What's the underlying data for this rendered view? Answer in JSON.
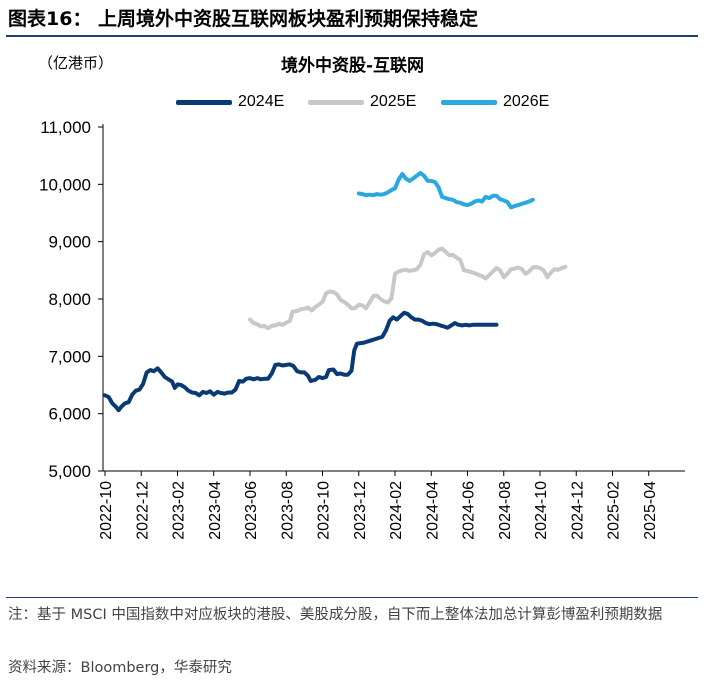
{
  "figure": {
    "title": "图表16：  上周境外中资股互联网板块盈利预期保持稳定",
    "unit_label": "（亿港币）",
    "note": "注：基于 MSCI 中国指数中对应板块的港股、美股成分股，自下而上整体法加总计算彭博盈利预期数据",
    "source": "资料来源：Bloomberg，华泰研究"
  },
  "colors": {
    "rule": "#1f3f73",
    "axis": "#000000"
  },
  "chart_data": {
    "type": "line",
    "title": "境外中资股-互联网",
    "xlabel": "",
    "ylabel": "（亿港币）",
    "legend_position": "top",
    "grid": false,
    "ylim": [
      5000,
      11000
    ],
    "yticks": [
      5000,
      6000,
      7000,
      8000,
      9000,
      10000,
      11000
    ],
    "ytick_labels": [
      "5,000",
      "6,000",
      "7,000",
      "8,000",
      "9,000",
      "10,000",
      "11,000"
    ],
    "xlim": [
      "2022-10",
      "2025-05"
    ],
    "xtick_labels": [
      "2022-10",
      "2022-12",
      "2023-02",
      "2023-04",
      "2023-06",
      "2023-08",
      "2023-10",
      "2023-12",
      "2024-02",
      "2024-04",
      "2024-06",
      "2024-08",
      "2024-10",
      "2024-12",
      "2025-02",
      "2025-04"
    ],
    "x_unit": "months since 2022-10",
    "series": [
      {
        "name": "2024E",
        "color": "#0a3a73",
        "points": [
          [
            0.0,
            6320
          ],
          [
            0.2,
            6290
          ],
          [
            0.4,
            6180
          ],
          [
            0.6,
            6120
          ],
          [
            0.75,
            6060
          ],
          [
            0.9,
            6120
          ],
          [
            1.1,
            6180
          ],
          [
            1.3,
            6200
          ],
          [
            1.5,
            6330
          ],
          [
            1.7,
            6400
          ],
          [
            1.9,
            6420
          ],
          [
            2.1,
            6520
          ],
          [
            2.3,
            6720
          ],
          [
            2.5,
            6760
          ],
          [
            2.7,
            6740
          ],
          [
            2.9,
            6790
          ],
          [
            3.1,
            6720
          ],
          [
            3.3,
            6640
          ],
          [
            3.5,
            6600
          ],
          [
            3.7,
            6560
          ],
          [
            3.85,
            6450
          ],
          [
            4.0,
            6510
          ],
          [
            4.2,
            6500
          ],
          [
            4.4,
            6460
          ],
          [
            4.6,
            6400
          ],
          [
            4.8,
            6370
          ],
          [
            5.0,
            6360
          ],
          [
            5.2,
            6320
          ],
          [
            5.4,
            6380
          ],
          [
            5.6,
            6360
          ],
          [
            5.8,
            6390
          ],
          [
            6.0,
            6330
          ],
          [
            6.2,
            6380
          ],
          [
            6.4,
            6360
          ],
          [
            6.6,
            6350
          ],
          [
            6.8,
            6370
          ],
          [
            7.0,
            6370
          ],
          [
            7.2,
            6420
          ],
          [
            7.4,
            6570
          ],
          [
            7.6,
            6560
          ],
          [
            7.8,
            6610
          ],
          [
            8.0,
            6620
          ],
          [
            8.2,
            6600
          ],
          [
            8.4,
            6620
          ],
          [
            8.6,
            6600
          ],
          [
            8.8,
            6610
          ],
          [
            9.0,
            6610
          ],
          [
            9.2,
            6700
          ],
          [
            9.4,
            6850
          ],
          [
            9.6,
            6860
          ],
          [
            9.8,
            6840
          ],
          [
            10.0,
            6850
          ],
          [
            10.2,
            6860
          ],
          [
            10.4,
            6830
          ],
          [
            10.6,
            6740
          ],
          [
            10.8,
            6720
          ],
          [
            11.0,
            6720
          ],
          [
            11.2,
            6660
          ],
          [
            11.35,
            6570
          ],
          [
            11.6,
            6590
          ],
          [
            11.8,
            6640
          ],
          [
            12.0,
            6620
          ],
          [
            12.2,
            6640
          ],
          [
            12.35,
            6760
          ],
          [
            12.6,
            6770
          ],
          [
            12.8,
            6690
          ],
          [
            13.0,
            6700
          ],
          [
            13.2,
            6680
          ],
          [
            13.4,
            6680
          ],
          [
            13.6,
            6750
          ],
          [
            13.75,
            7100
          ],
          [
            13.9,
            7220
          ],
          [
            14.1,
            7230
          ],
          [
            14.3,
            7240
          ],
          [
            14.5,
            7260
          ],
          [
            14.7,
            7280
          ],
          [
            14.9,
            7300
          ],
          [
            15.1,
            7320
          ],
          [
            15.3,
            7340
          ],
          [
            15.5,
            7450
          ],
          [
            15.7,
            7620
          ],
          [
            15.9,
            7680
          ],
          [
            16.1,
            7640
          ],
          [
            16.3,
            7700
          ],
          [
            16.5,
            7760
          ],
          [
            16.7,
            7740
          ],
          [
            16.9,
            7680
          ],
          [
            17.1,
            7640
          ],
          [
            17.3,
            7640
          ],
          [
            17.5,
            7620
          ],
          [
            17.7,
            7580
          ],
          [
            17.9,
            7560
          ],
          [
            18.1,
            7570
          ],
          [
            18.3,
            7560
          ],
          [
            18.5,
            7540
          ],
          [
            18.7,
            7520
          ],
          [
            18.9,
            7500
          ],
          [
            19.1,
            7540
          ],
          [
            19.3,
            7580
          ],
          [
            19.5,
            7550
          ],
          [
            19.7,
            7540
          ],
          [
            19.9,
            7550
          ],
          [
            20.1,
            7540
          ],
          [
            20.3,
            7550
          ],
          [
            20.5,
            7550
          ],
          [
            20.7,
            7550
          ],
          [
            20.9,
            7550
          ],
          [
            21.1,
            7550
          ],
          [
            21.3,
            7550
          ],
          [
            21.6,
            7550
          ]
        ]
      },
      {
        "name": "2025E",
        "color": "#c8c8c8",
        "points": [
          [
            8.0,
            7640
          ],
          [
            8.2,
            7580
          ],
          [
            8.4,
            7560
          ],
          [
            8.6,
            7520
          ],
          [
            8.8,
            7530
          ],
          [
            9.0,
            7490
          ],
          [
            9.2,
            7530
          ],
          [
            9.4,
            7540
          ],
          [
            9.6,
            7570
          ],
          [
            9.8,
            7550
          ],
          [
            10.0,
            7590
          ],
          [
            10.2,
            7620
          ],
          [
            10.35,
            7780
          ],
          [
            10.6,
            7790
          ],
          [
            10.8,
            7820
          ],
          [
            11.0,
            7830
          ],
          [
            11.2,
            7850
          ],
          [
            11.4,
            7800
          ],
          [
            11.6,
            7860
          ],
          [
            11.8,
            7900
          ],
          [
            12.0,
            7950
          ],
          [
            12.2,
            8100
          ],
          [
            12.4,
            8130
          ],
          [
            12.6,
            8120
          ],
          [
            12.8,
            8080
          ],
          [
            13.0,
            7980
          ],
          [
            13.2,
            7950
          ],
          [
            13.4,
            7900
          ],
          [
            13.6,
            7840
          ],
          [
            13.8,
            7840
          ],
          [
            14.0,
            7900
          ],
          [
            14.2,
            7890
          ],
          [
            14.4,
            7840
          ],
          [
            14.6,
            7940
          ],
          [
            14.8,
            8050
          ],
          [
            15.0,
            8060
          ],
          [
            15.2,
            8000
          ],
          [
            15.4,
            7960
          ],
          [
            15.6,
            7940
          ],
          [
            15.8,
            8010
          ],
          [
            16.0,
            8440
          ],
          [
            16.2,
            8480
          ],
          [
            16.4,
            8500
          ],
          [
            16.6,
            8510
          ],
          [
            16.8,
            8490
          ],
          [
            17.0,
            8500
          ],
          [
            17.2,
            8520
          ],
          [
            17.4,
            8600
          ],
          [
            17.6,
            8780
          ],
          [
            17.8,
            8820
          ],
          [
            18.0,
            8760
          ],
          [
            18.2,
            8800
          ],
          [
            18.4,
            8860
          ],
          [
            18.6,
            8880
          ],
          [
            18.8,
            8820
          ],
          [
            19.0,
            8760
          ],
          [
            19.2,
            8770
          ],
          [
            19.4,
            8720
          ],
          [
            19.6,
            8680
          ],
          [
            19.8,
            8500
          ],
          [
            20.0,
            8490
          ],
          [
            20.2,
            8470
          ],
          [
            20.4,
            8450
          ],
          [
            20.6,
            8420
          ],
          [
            20.8,
            8400
          ],
          [
            21.0,
            8360
          ],
          [
            21.2,
            8420
          ],
          [
            21.4,
            8480
          ],
          [
            21.6,
            8540
          ],
          [
            21.8,
            8500
          ],
          [
            22.0,
            8380
          ],
          [
            22.2,
            8440
          ],
          [
            22.4,
            8520
          ],
          [
            22.6,
            8530
          ],
          [
            22.8,
            8550
          ],
          [
            23.0,
            8520
          ],
          [
            23.2,
            8440
          ],
          [
            23.4,
            8480
          ],
          [
            23.6,
            8550
          ],
          [
            23.8,
            8560
          ],
          [
            24.0,
            8540
          ],
          [
            24.2,
            8500
          ],
          [
            24.4,
            8380
          ],
          [
            24.6,
            8460
          ],
          [
            24.8,
            8520
          ],
          [
            25.0,
            8510
          ],
          [
            25.2,
            8540
          ],
          [
            25.4,
            8560
          ]
        ]
      },
      {
        "name": "2026E",
        "color": "#29a9df",
        "points": [
          [
            14.0,
            9840
          ],
          [
            14.2,
            9830
          ],
          [
            14.4,
            9810
          ],
          [
            14.6,
            9820
          ],
          [
            14.8,
            9810
          ],
          [
            15.0,
            9830
          ],
          [
            15.2,
            9820
          ],
          [
            15.4,
            9830
          ],
          [
            15.6,
            9860
          ],
          [
            15.8,
            9900
          ],
          [
            16.0,
            9930
          ],
          [
            16.2,
            10080
          ],
          [
            16.4,
            10180
          ],
          [
            16.6,
            10100
          ],
          [
            16.8,
            10060
          ],
          [
            17.0,
            10100
          ],
          [
            17.2,
            10150
          ],
          [
            17.4,
            10200
          ],
          [
            17.6,
            10150
          ],
          [
            17.8,
            10060
          ],
          [
            18.0,
            10060
          ],
          [
            18.2,
            10040
          ],
          [
            18.4,
            9950
          ],
          [
            18.6,
            9780
          ],
          [
            18.8,
            9760
          ],
          [
            19.0,
            9740
          ],
          [
            19.2,
            9730
          ],
          [
            19.4,
            9690
          ],
          [
            19.6,
            9680
          ],
          [
            19.8,
            9650
          ],
          [
            20.0,
            9640
          ],
          [
            20.2,
            9660
          ],
          [
            20.4,
            9700
          ],
          [
            20.6,
            9720
          ],
          [
            20.8,
            9700
          ],
          [
            21.0,
            9780
          ],
          [
            21.2,
            9760
          ],
          [
            21.4,
            9800
          ],
          [
            21.6,
            9800
          ],
          [
            21.8,
            9740
          ],
          [
            22.0,
            9720
          ],
          [
            22.2,
            9690
          ],
          [
            22.4,
            9600
          ],
          [
            22.6,
            9620
          ],
          [
            22.8,
            9640
          ],
          [
            23.0,
            9660
          ],
          [
            23.2,
            9680
          ],
          [
            23.4,
            9700
          ],
          [
            23.6,
            9730
          ]
        ]
      }
    ]
  }
}
